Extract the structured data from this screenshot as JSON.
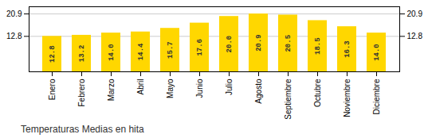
{
  "chart_data": {
    "type": "bar",
    "title": "Temperaturas Medias en hita",
    "categories": [
      "Enero",
      "Febrero",
      "Marzo",
      "Abril",
      "Mayo",
      "Junio",
      "Julio",
      "Agosto",
      "Septiembre",
      "Octubre",
      "Noviembre",
      "Diciembre"
    ],
    "values": [
      12.8,
      13.2,
      14.0,
      14.4,
      15.7,
      17.6,
      20.0,
      20.9,
      20.5,
      18.5,
      16.3,
      14.0
    ],
    "value_labels": [
      "12.8",
      "13.2",
      "14.0",
      "14.4",
      "15.7",
      "17.6",
      "20.0",
      "20.9",
      "20.5",
      "18.5",
      "16.3",
      "14.0"
    ],
    "color": "#FFD700",
    "ylim": [
      0,
      23.5
    ],
    "yticks": [
      12.8,
      20.9
    ],
    "grid": true,
    "data_labels": true
  }
}
